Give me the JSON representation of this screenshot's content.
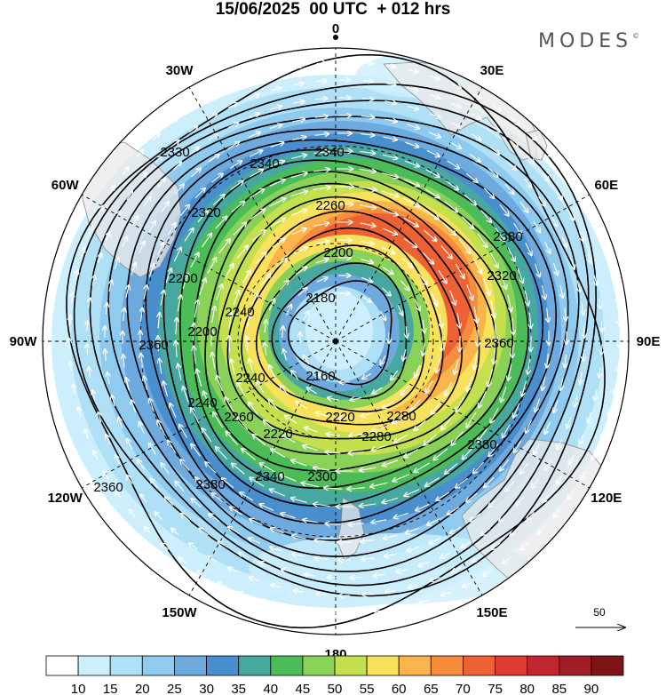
{
  "header": {
    "title": "15/06/2025  00 UTC  + 012 hrs",
    "logo": "MODES"
  },
  "map": {
    "projection": "south polar stereographic",
    "longitude_labels": [
      {
        "name": "0",
        "lon": 0
      },
      {
        "name": "30E",
        "lon": 30
      },
      {
        "name": "60E",
        "lon": 60
      },
      {
        "name": "90E",
        "lon": 90
      },
      {
        "name": "120E",
        "lon": 120
      },
      {
        "name": "150E",
        "lon": 150
      },
      {
        "name": "180",
        "lon": 180
      },
      {
        "name": "150W",
        "lon": -150
      },
      {
        "name": "120W",
        "lon": -120
      },
      {
        "name": "90W",
        "lon": -90
      },
      {
        "name": "60W",
        "lon": -60
      },
      {
        "name": "30W",
        "lon": -30
      }
    ],
    "contour_labels": [
      "2330",
      "2340",
      "2340",
      "2260",
      "2200",
      "2180",
      "2160",
      "2220",
      "2260",
      "2200",
      "2280",
      "2320",
      "2360",
      "2380",
      "2380",
      "2380",
      "2360",
      "2340",
      "2300",
      "2280",
      "2220",
      "2240",
      "2240",
      "2200",
      "2240",
      "2320",
      "2360"
    ],
    "reference_vector": {
      "label": "50"
    },
    "colors": {
      "land": "#efefef",
      "coast": "#999999",
      "contour": "#000000",
      "vector": "#ffffff"
    }
  },
  "colorbar": {
    "ticks": [
      "10",
      "15",
      "20",
      "25",
      "30",
      "35",
      "40",
      "45",
      "50",
      "55",
      "60",
      "65",
      "70",
      "75",
      "80",
      "85",
      "90"
    ],
    "colors": [
      "#ffffff",
      "#cdeffd",
      "#b0e0f6",
      "#8fcbef",
      "#6eaadd",
      "#4a8fcd",
      "#47a8a0",
      "#4cbc59",
      "#8ad157",
      "#c5e04f",
      "#f8e15c",
      "#f9b44c",
      "#f58d3c",
      "#ee6133",
      "#dd3b30",
      "#c2262f",
      "#a01c26",
      "#7e1416"
    ]
  }
}
